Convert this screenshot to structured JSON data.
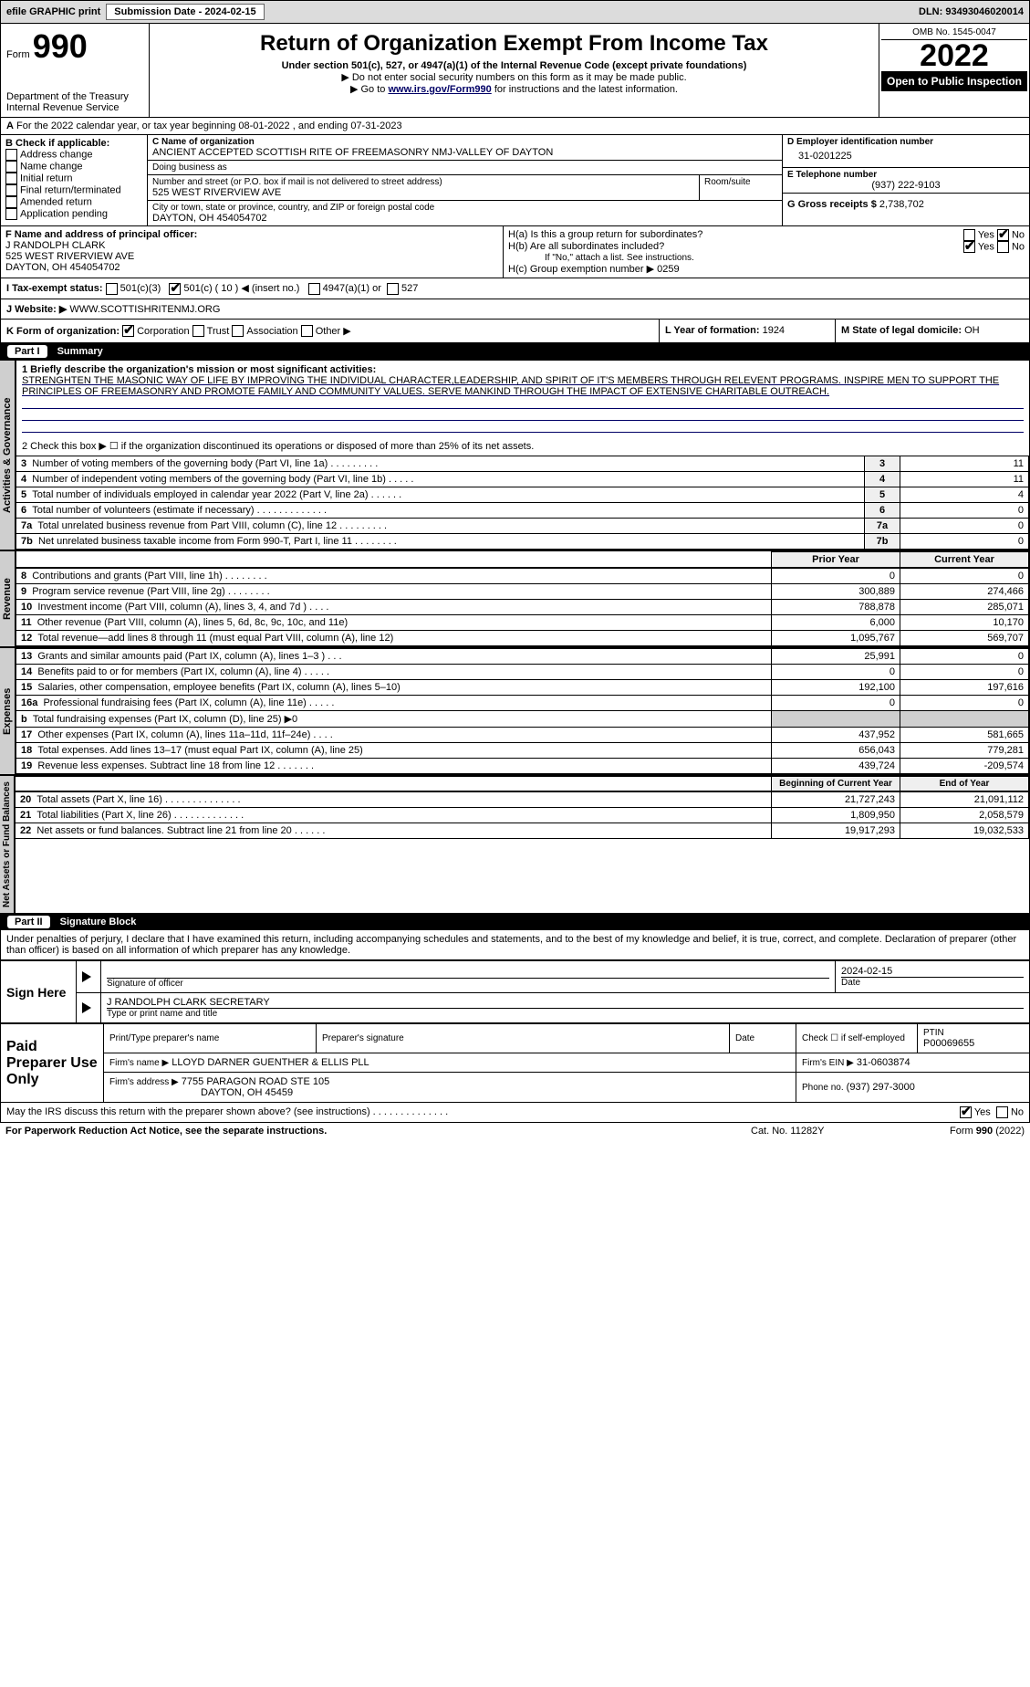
{
  "topbar": {
    "efile_label": "efile GRAPHIC print",
    "submission_label": "Submission Date - 2024-02-15",
    "dln_label": "DLN: 93493046020014"
  },
  "header": {
    "form_prefix": "Form",
    "form_number": "990",
    "dept": "Department of the Treasury",
    "irs": "Internal Revenue Service",
    "title": "Return of Organization Exempt From Income Tax",
    "subtitle": "Under section 501(c), 527, or 4947(a)(1) of the Internal Revenue Code (except private foundations)",
    "note1": "▶ Do not enter social security numbers on this form as it may be made public.",
    "note2_prefix": "▶ Go to ",
    "note2_link": "www.irs.gov/Form990",
    "note2_suffix": " for instructions and the latest information.",
    "omb": "OMB No. 1545-0047",
    "year": "2022",
    "open_pub": "Open to Public Inspection"
  },
  "A": {
    "text": "For the 2022 calendar year, or tax year beginning 08-01-2022     , and ending 07-31-2023"
  },
  "B": {
    "label": "B Check if applicable:",
    "opts": [
      "Address change",
      "Name change",
      "Initial return",
      "Final return/terminated",
      "Amended return",
      "Application pending"
    ]
  },
  "C": {
    "name_label": "C Name of organization",
    "name": "ANCIENT ACCEPTED SCOTTISH RITE OF FREEMASONRY NMJ-VALLEY OF DAYTON",
    "dba_label": "Doing business as",
    "dba": "",
    "addr_label": "Number and street (or P.O. box if mail is not delivered to street address)",
    "room_label": "Room/suite",
    "addr": "525 WEST RIVERVIEW AVE",
    "city_label": "City or town, state or province, country, and ZIP or foreign postal code",
    "city": "DAYTON, OH  454054702"
  },
  "D": {
    "label": "D Employer identification number",
    "value": "31-0201225"
  },
  "E": {
    "label": "E Telephone number",
    "value": "(937) 222-9103"
  },
  "G": {
    "label": "G Gross receipts $",
    "value": "2,738,702"
  },
  "F": {
    "label": "F Name and address of principal officer:",
    "name": "J RANDOLPH CLARK",
    "addr1": "525 WEST RIVERVIEW AVE",
    "addr2": "DAYTON, OH  454054702"
  },
  "H": {
    "a": "H(a)  Is this a group return for subordinates?",
    "b": "H(b)  Are all subordinates included?",
    "b_note": "If \"No,\" attach a list. See instructions.",
    "c": "H(c)  Group exemption number ▶",
    "c_val": "0259",
    "yes": "Yes",
    "no": "No"
  },
  "I": {
    "label": "I   Tax-exempt status:",
    "c3": "501(c)(3)",
    "c": "501(c) ( 10 ) ◀ (insert no.)",
    "a1": "4947(a)(1) or",
    "527": "527"
  },
  "J": {
    "label": "J   Website: ▶",
    "value": "WWW.SCOTTISHRITENMJ.ORG"
  },
  "K": {
    "label": "K Form of organization:",
    "corp": "Corporation",
    "trust": "Trust",
    "assoc": "Association",
    "other": "Other ▶"
  },
  "L": {
    "label": "L Year of formation:",
    "value": "1924"
  },
  "M": {
    "label": "M State of legal domicile:",
    "value": "OH"
  },
  "part1": {
    "bar": "Summary",
    "part_label": "Part I",
    "q1_label": "1  Briefly describe the organization's mission or most significant activities:",
    "q1_text": "STRENGHTEN THE MASONIC WAY OF LIFE BY IMPROVING THE INDIVIDUAL CHARACTER,LEADERSHIP, AND SPIRIT OF IT'S MEMBERS THROUGH RELEVENT PROGRAMS. INSPIRE MEN TO SUPPORT THE PRINCIPLES OF FREEMASONRY AND PROMOTE FAMILY AND COMMUNITY VALUES. SERVE MANKIND THROUGH THE IMPACT OF EXTENSIVE CHARITABLE OUTREACH.",
    "q2": "2   Check this box ▶ ☐  if the organization discontinued its operations or disposed of more than 25% of its net assets.",
    "gov_lines": [
      {
        "n": "3",
        "desc": "Number of voting members of the governing body (Part VI, line 1a)   .    .    .    .    .    .    .    .    .",
        "val": "11"
      },
      {
        "n": "4",
        "desc": "Number of independent voting members of the governing body (Part VI, line 1b)    .    .    .    .    .",
        "val": "11"
      },
      {
        "n": "5",
        "desc": "Total number of individuals employed in calendar year 2022 (Part V, line 2a)   .    .    .    .    .    .",
        "val": "4"
      },
      {
        "n": "6",
        "desc": "Total number of volunteers (estimate if necessary)    .    .    .    .    .    .    .    .    .    .    .    .    .",
        "val": "0"
      },
      {
        "n": "7a",
        "desc": "Total unrelated business revenue from Part VIII, column (C), line 12   .    .    .    .    .    .    .    .    .",
        "val": "0"
      },
      {
        "n": "7b",
        "desc": "Net unrelated business taxable income from Form 990-T, Part I, line 11   .    .    .    .    .    .    .    .",
        "val": "0"
      }
    ],
    "cols": {
      "prior": "Prior Year",
      "current": "Current Year"
    },
    "rev_lines": [
      {
        "n": "8",
        "desc": "Contributions and grants (Part VIII, line 1h)    .    .    .    .    .    .    .    .",
        "p": "0",
        "c": "0"
      },
      {
        "n": "9",
        "desc": "Program service revenue (Part VIII, line 2g)    .    .    .    .    .    .    .    .",
        "p": "300,889",
        "c": "274,466"
      },
      {
        "n": "10",
        "desc": "Investment income (Part VIII, column (A), lines 3, 4, and 7d )    .    .    .    .",
        "p": "788,878",
        "c": "285,071"
      },
      {
        "n": "11",
        "desc": "Other revenue (Part VIII, column (A), lines 5, 6d, 8c, 9c, 10c, and 11e)",
        "p": "6,000",
        "c": "10,170"
      },
      {
        "n": "12",
        "desc": "Total revenue—add lines 8 through 11 (must equal Part VIII, column (A), line 12)",
        "p": "1,095,767",
        "c": "569,707"
      }
    ],
    "exp_lines": [
      {
        "n": "13",
        "desc": "Grants and similar amounts paid (Part IX, column (A), lines 1–3 )   .    .    .",
        "p": "25,991",
        "c": "0"
      },
      {
        "n": "14",
        "desc": "Benefits paid to or for members (Part IX, column (A), line 4)   .    .    .    .    .",
        "p": "0",
        "c": "0"
      },
      {
        "n": "15",
        "desc": "Salaries, other compensation, employee benefits (Part IX, column (A), lines 5–10)",
        "p": "192,100",
        "c": "197,616"
      },
      {
        "n": "16a",
        "desc": "Professional fundraising fees (Part IX, column (A), line 11e)   .    .    .    .    .",
        "p": "0",
        "c": "0"
      },
      {
        "n": "b",
        "desc": "Total fundraising expenses (Part IX, column (D), line 25) ▶0",
        "p": "",
        "c": "",
        "shade": true
      },
      {
        "n": "17",
        "desc": "Other expenses (Part IX, column (A), lines 11a–11d, 11f–24e)   .    .    .    .",
        "p": "437,952",
        "c": "581,665"
      },
      {
        "n": "18",
        "desc": "Total expenses. Add lines 13–17 (must equal Part IX, column (A), line 25)",
        "p": "656,043",
        "c": "779,281"
      },
      {
        "n": "19",
        "desc": "Revenue less expenses. Subtract line 18 from line 12   .    .    .    .    .    .    .",
        "p": "439,724",
        "c": "-209,574"
      }
    ],
    "na_cols": {
      "beg": "Beginning of Current Year",
      "end": "End of Year"
    },
    "na_lines": [
      {
        "n": "20",
        "desc": "Total assets (Part X, line 16)   .    .    .    .    .    .    .    .    .    .    .    .    .    .",
        "p": "21,727,243",
        "c": "21,091,112"
      },
      {
        "n": "21",
        "desc": "Total liabilities (Part X, line 26)   .    .    .    .    .    .    .    .    .    .    .    .    .",
        "p": "1,809,950",
        "c": "2,058,579"
      },
      {
        "n": "22",
        "desc": "Net assets or fund balances. Subtract line 21 from line 20   .    .    .    .    .    .",
        "p": "19,917,293",
        "c": "19,032,533"
      }
    ],
    "tabs": {
      "gov": "Activities & Governance",
      "rev": "Revenue",
      "exp": "Expenses",
      "na": "Net Assets or Fund Balances"
    }
  },
  "part2": {
    "part_label": "Part II",
    "bar": "Signature Block",
    "decl": "Under penalties of perjury, I declare that I have examined this return, including accompanying schedules and statements, and to the best of my knowledge and belief, it is true, correct, and complete. Declaration of preparer (other than officer) is based on all information of which preparer has any knowledge.",
    "sign_here": "Sign Here",
    "sig_officer": "Signature of officer",
    "date": "Date",
    "sig_date": "2024-02-15",
    "name_title": "J RANDOLPH CLARK  SECRETARY",
    "name_title_label": "Type or print name and title",
    "paid": "Paid Preparer Use Only",
    "pp_name_label": "Print/Type preparer's name",
    "pp_sig_label": "Preparer's signature",
    "pp_date_label": "Date",
    "pp_check": "Check ☐ if self-employed",
    "ptin_label": "PTIN",
    "ptin": "P00069655",
    "firm_name_label": "Firm's name      ▶",
    "firm_name": "LLOYD DARNER GUENTHER & ELLIS PLL",
    "firm_ein_label": "Firm's EIN ▶",
    "firm_ein": "31-0603874",
    "firm_addr_label": "Firm's address ▶",
    "firm_addr": "7755 PARAGON ROAD STE 105",
    "firm_city": "DAYTON, OH  45459",
    "phone_label": "Phone no.",
    "phone": "(937) 297-3000",
    "discuss": "May the IRS discuss this return with the preparer shown above? (see instructions)   .    .    .    .    .    .    .    .    .    .    .    .    .    .",
    "yes": "Yes",
    "no": "No"
  },
  "footer": {
    "pra": "For Paperwork Reduction Act Notice, see the separate instructions.",
    "cat": "Cat. No. 11282Y",
    "form": "Form 990 (2022)"
  },
  "colors": {
    "bar_bg": "#000000",
    "bar_fg": "#ffffff",
    "shade": "#cfcfcf",
    "link": "#003366"
  }
}
